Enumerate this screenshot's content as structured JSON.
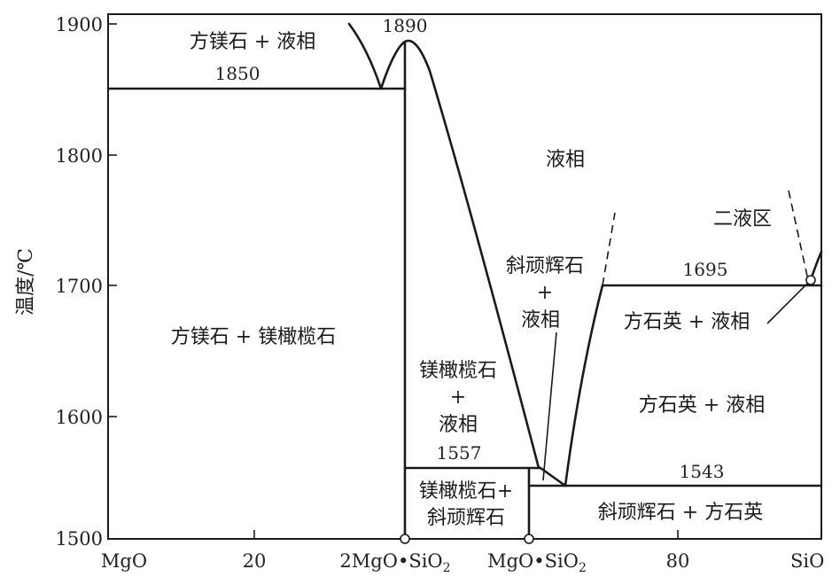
{
  "y_axis": {
    "label": "温度/℃",
    "ticks": [
      "1900",
      "1800",
      "1700",
      "1600",
      "1500"
    ]
  },
  "x_axis": {
    "ticks": [
      "MgO",
      "20",
      "2MgO•SiO",
      "MgO•SiO",
      "80",
      "SiO"
    ],
    "subscript": "2"
  },
  "temperatures": {
    "t1890": "1890",
    "t1850": "1850",
    "t1695": "1695",
    "t1557": "1557",
    "t1543": "1543"
  },
  "regions": {
    "periclase_liquid": "方镁石 + 液相",
    "liquid": "液相",
    "two_liquids": "二液区",
    "periclase_forsterite": "方镁石 + 镁橄榄石",
    "clinoenstatite": "斜顽辉石",
    "plus": "+",
    "liquid2": "液相",
    "forsterite": "镁橄榄石",
    "liquid3": "液相",
    "cristobalite_liquid_upper": "方石英 + 液相",
    "cristobalite_liquid_lower": "方石英 + 液相",
    "forsterite_clino": "镁橄榄石+",
    "forsterite_clino_2": "斜顽辉石",
    "clino_cristobalite": "斜顽辉石 + 方石英"
  }
}
